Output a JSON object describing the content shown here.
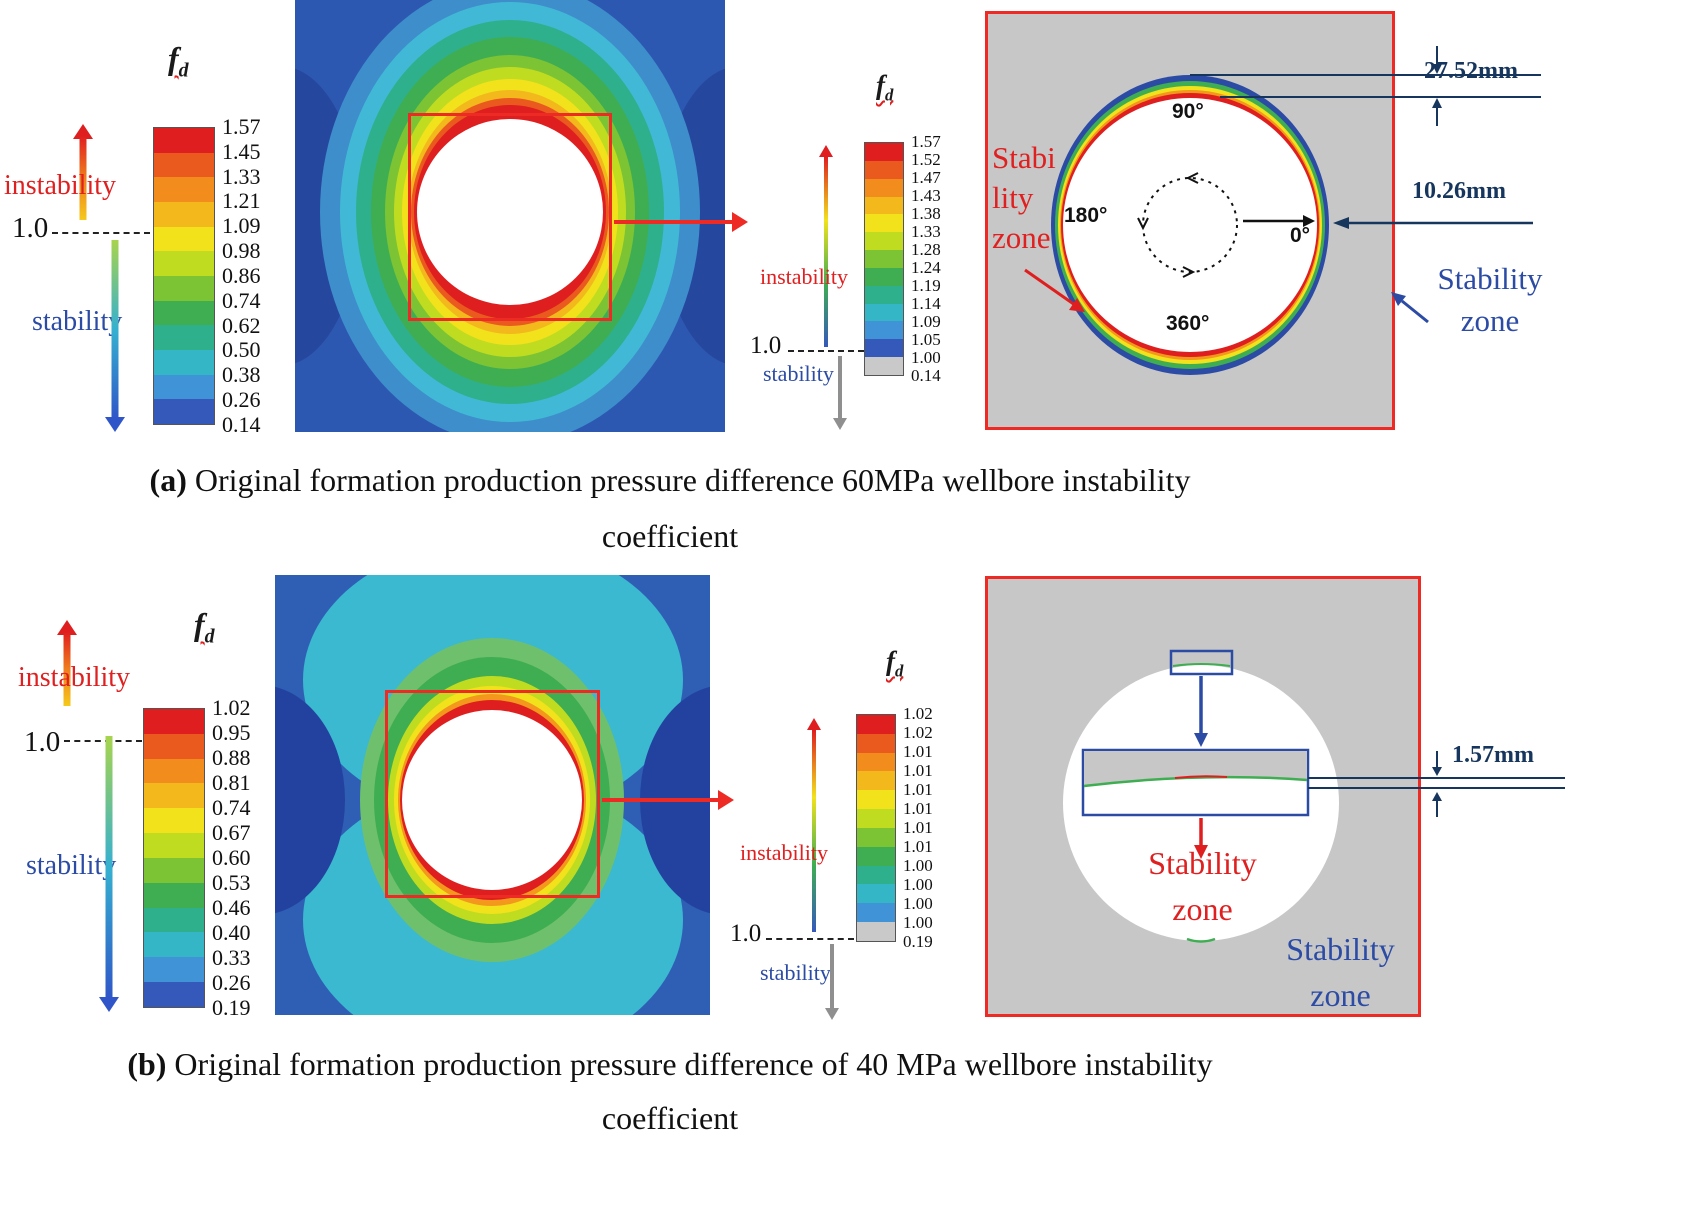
{
  "colors": {
    "instability_red": "#e02020",
    "stability_blue": "#2b4ba5",
    "dimension_navy": "#17365d",
    "zoom_background_gray": "#c7c7c7",
    "highlight_box_red": "#ee2a24"
  },
  "figure": {
    "panel_a": {
      "legend_main": {
        "fd_base": "f",
        "fd_sub": "d",
        "instability": "instability",
        "stability": "stability",
        "threshold": "1.0",
        "ticks": [
          "1.57",
          "1.45",
          "1.33",
          "1.21",
          "1.09",
          "0.98",
          "0.86",
          "0.74",
          "0.62",
          "0.50",
          "0.38",
          "0.26",
          "0.14"
        ],
        "band_colors": [
          "#df1f1f",
          "#ea5a1e",
          "#f28c1c",
          "#f3b81c",
          "#f1e21c",
          "#c0dc20",
          "#7cc434",
          "#3fae52",
          "#2fb08c",
          "#35b6c6",
          "#3f93d6",
          "#3558bb"
        ]
      },
      "legend_zoom": {
        "fd_base": "f",
        "fd_sub": "d",
        "instability": "instability",
        "stability": "stability",
        "threshold": "1.0",
        "ticks": [
          "1.57",
          "1.52",
          "1.47",
          "1.43",
          "1.38",
          "1.33",
          "1.28",
          "1.24",
          "1.19",
          "1.14",
          "1.09",
          "1.05",
          "1.00",
          "0.14"
        ],
        "band_colors": [
          "#df1f1f",
          "#ea5a1e",
          "#f28c1c",
          "#f3b81c",
          "#f1e21c",
          "#c0dc20",
          "#7cc434",
          "#3fae52",
          "#2fb08c",
          "#35b6c6",
          "#3f93d6",
          "#3558bb",
          "#c9c9c9"
        ]
      },
      "zoom": {
        "angle_top": "90°",
        "angle_left": "180°",
        "angle_right": "0°",
        "angle_bottom": "360°",
        "stability_zone_left": [
          "Stabi",
          "lity",
          "zone"
        ],
        "stability_zone_right": [
          "Stability",
          "zone"
        ],
        "dim_top": "27.52mm",
        "dim_right": "10.26mm"
      },
      "caption_prefix": "(a)",
      "caption_line1": " Original formation production pressure difference 60MPa wellbore instability",
      "caption_line2": "coefficient"
    },
    "panel_b": {
      "legend_main": {
        "fd_base": "f",
        "fd_sub": "d",
        "instability": "instability",
        "stability": "stability",
        "threshold": "1.0",
        "ticks": [
          "1.02",
          "0.95",
          "0.88",
          "0.81",
          "0.74",
          "0.67",
          "0.60",
          "0.53",
          "0.46",
          "0.40",
          "0.33",
          "0.26",
          "0.19"
        ],
        "band_colors": [
          "#df1f1f",
          "#ea5a1e",
          "#f28c1c",
          "#f3b81c",
          "#f1e21c",
          "#c0dc20",
          "#7cc434",
          "#3fae52",
          "#2fb08c",
          "#35b6c6",
          "#3f93d6",
          "#3558bb"
        ]
      },
      "legend_zoom": {
        "fd_base": "f",
        "fd_sub": "d",
        "instability": "instability",
        "stability": "stability",
        "threshold": "1.0",
        "ticks": [
          "1.02",
          "1.02",
          "1.01",
          "1.01",
          "1.01",
          "1.01",
          "1.01",
          "1.01",
          "1.00",
          "1.00",
          "1.00",
          "1.00",
          "0.19"
        ],
        "band_colors": [
          "#df1f1f",
          "#ea5a1e",
          "#f28c1c",
          "#f3b81c",
          "#f1e21c",
          "#c0dc20",
          "#7cc434",
          "#3fae52",
          "#2fb08c",
          "#35b6c6",
          "#3f93d6",
          "#c9c9c9"
        ]
      },
      "zoom": {
        "dim": "1.57mm",
        "stability_zone_center": [
          "Stability",
          "zone"
        ],
        "stability_zone_right": [
          "Stability",
          "zone"
        ]
      },
      "caption_prefix": "(b)",
      "caption_line1": " Original formation production pressure difference of 40 MPa wellbore instability",
      "caption_line2": "coefficient"
    }
  }
}
